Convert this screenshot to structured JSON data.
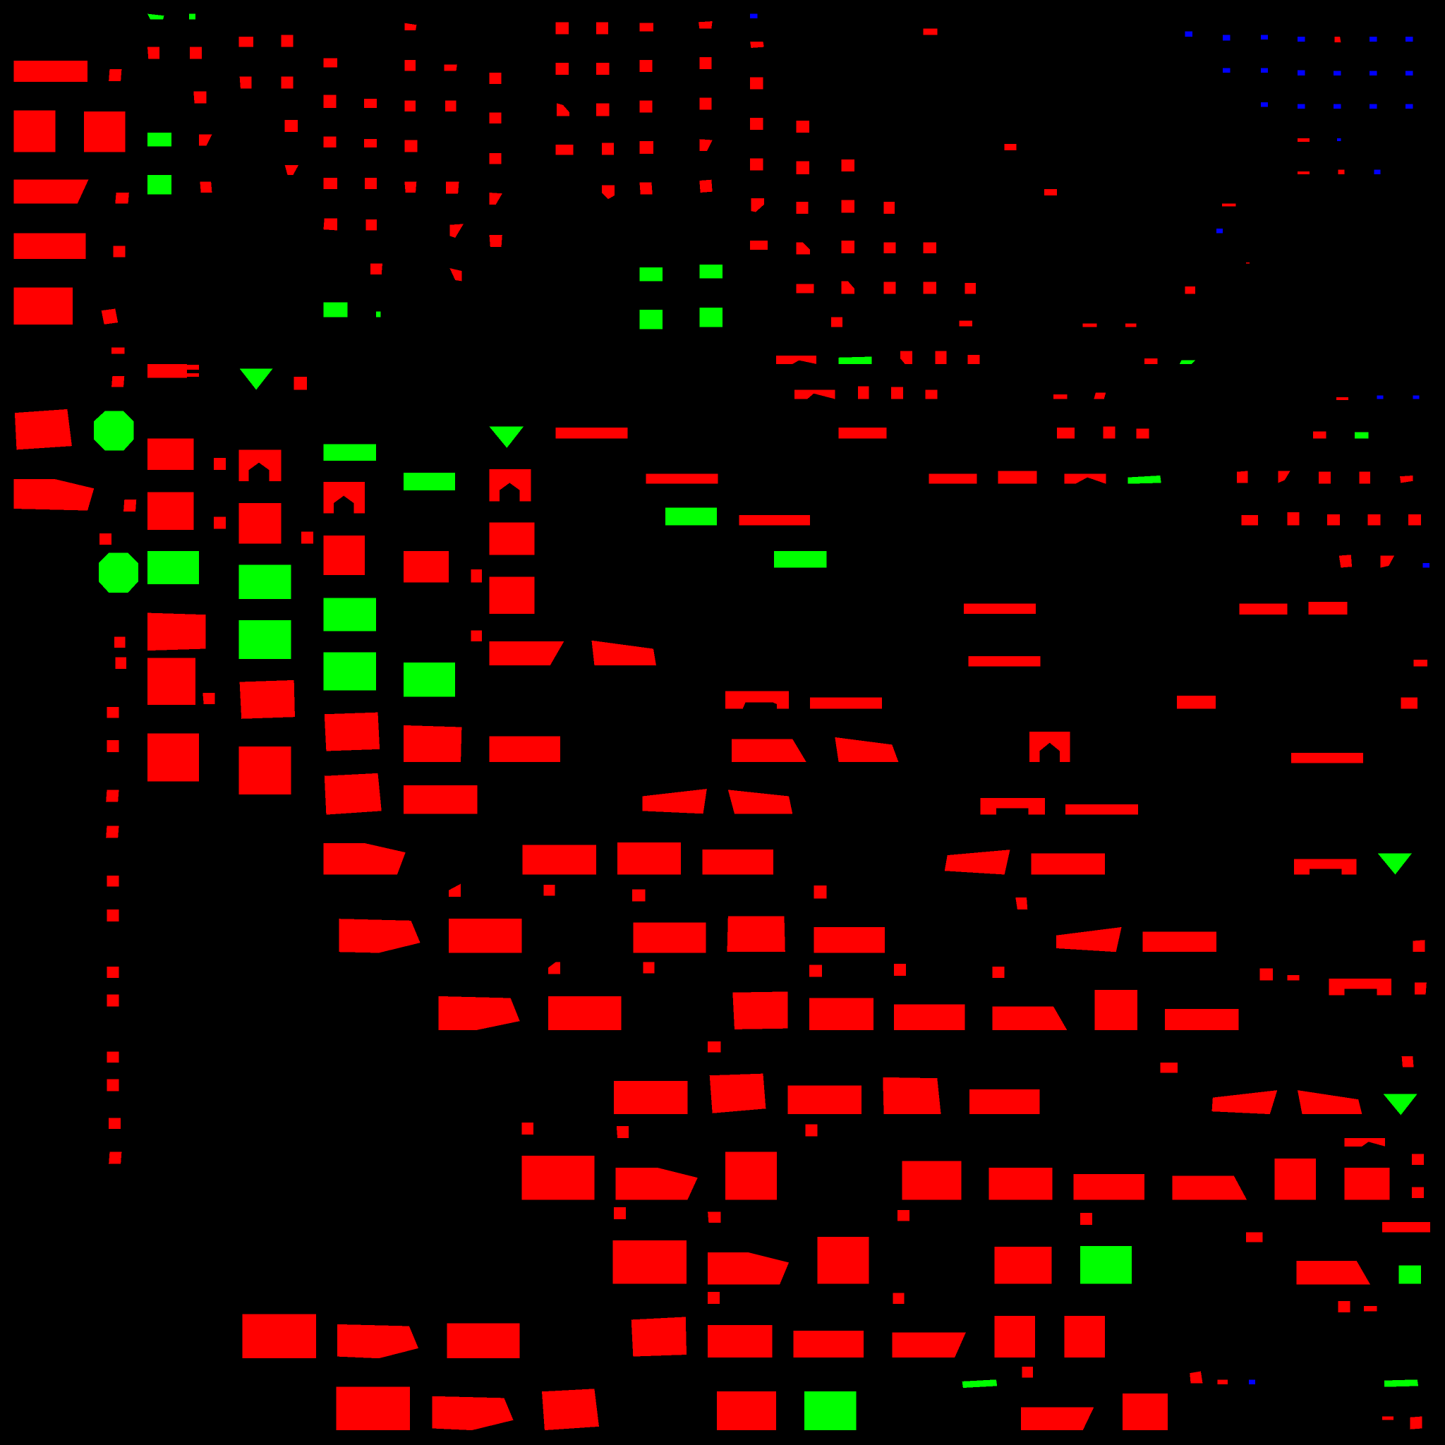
{
  "scene": {
    "background": "#000000",
    "legend": [
      {
        "class": "red",
        "color": "#ff0000"
      },
      {
        "class": "green",
        "color": "#00ff00"
      },
      {
        "class": "blue",
        "color": "#0000ff"
      }
    ]
  }
}
